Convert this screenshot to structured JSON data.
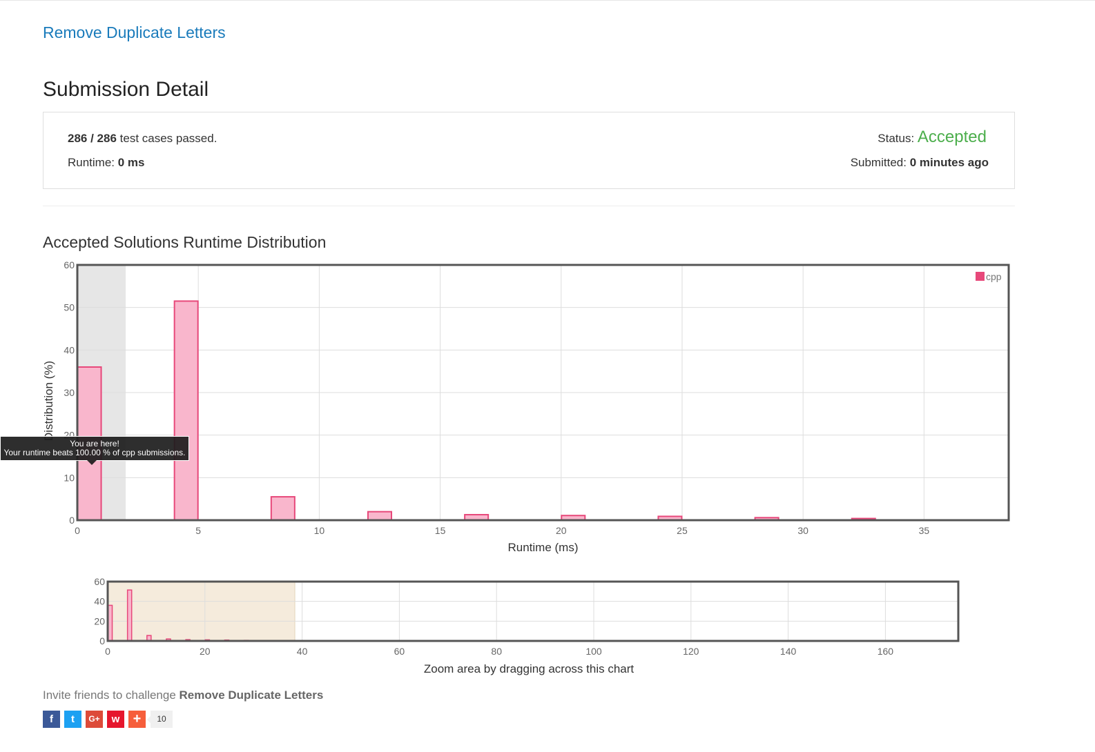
{
  "problem": {
    "title": "Remove Duplicate Letters"
  },
  "page": {
    "title": "Submission Detail"
  },
  "summary": {
    "passed": "286",
    "separator": " / ",
    "total": "286",
    "passed_suffix": " test cases passed.",
    "runtime_label": "Runtime: ",
    "runtime_value": "0 ms",
    "status_label": "Status: ",
    "status_value": "Accepted",
    "submitted_label": "Submitted: ",
    "submitted_value": "0 minutes ago",
    "status_color": "#4cae4c"
  },
  "distribution": {
    "title": "Accepted Solutions Runtime Distribution",
    "tooltip_line1": "You are here!",
    "tooltip_line2": "Your runtime beats 100.00 % of cpp submissions."
  },
  "chart_data": [
    {
      "type": "bar",
      "xlabel": "Runtime (ms)",
      "ylabel": "Distribution (%)",
      "xlim": [
        0,
        38.5
      ],
      "ylim": [
        0,
        60
      ],
      "xticks": [
        0,
        5,
        10,
        15,
        20,
        25,
        30,
        35
      ],
      "yticks": [
        0,
        10,
        20,
        30,
        40,
        50,
        60
      ],
      "grid": true,
      "legend": "top-right",
      "highlight_range": [
        0,
        2
      ],
      "series": [
        {
          "name": "cpp",
          "color": "#e7487a",
          "fill": "#f9b6cc",
          "bar_width": 1,
          "x": [
            0,
            4,
            8,
            12,
            16,
            20,
            24,
            28,
            32
          ],
          "values": [
            36,
            51.5,
            5.5,
            2,
            1.3,
            1.1,
            0.9,
            0.6,
            0.4
          ]
        }
      ]
    },
    {
      "type": "bar",
      "xlabel": "Zoom area by dragging across this chart",
      "xlim": [
        0,
        175
      ],
      "ylim": [
        0,
        60
      ],
      "xticks": [
        0,
        20,
        40,
        60,
        80,
        100,
        120,
        140,
        160
      ],
      "yticks": [
        0,
        20,
        40,
        60
      ],
      "grid": true,
      "selection_range": [
        0,
        38.5
      ],
      "series": [
        {
          "name": "cpp",
          "color": "#e7487a",
          "fill": "#f9b6cc",
          "bar_width": 1,
          "x": [
            0,
            4,
            8,
            12,
            16,
            20,
            24,
            28,
            32,
            68,
            72,
            84,
            156,
            172
          ],
          "values": [
            36,
            51.5,
            5.5,
            2,
            1.3,
            1.1,
            0.9,
            0.6,
            0.4,
            0.3,
            0.3,
            0.3,
            0.3,
            0.3
          ]
        }
      ]
    }
  ],
  "invite": {
    "prefix": "Invite friends to challenge ",
    "problem": "Remove Duplicate Letters"
  },
  "share": {
    "buttons": [
      {
        "icon": "facebook-icon",
        "glyph": "f",
        "color": "#3b5998"
      },
      {
        "icon": "twitter-icon",
        "glyph": "t",
        "color": "#1da1f2"
      },
      {
        "icon": "google-plus-icon",
        "glyph": "G+",
        "color": "#dd4b39"
      },
      {
        "icon": "weibo-icon",
        "glyph": "w",
        "color": "#e6162d"
      },
      {
        "icon": "add-icon",
        "glyph": "+",
        "color": "#f65e3b"
      }
    ],
    "count": "10"
  }
}
